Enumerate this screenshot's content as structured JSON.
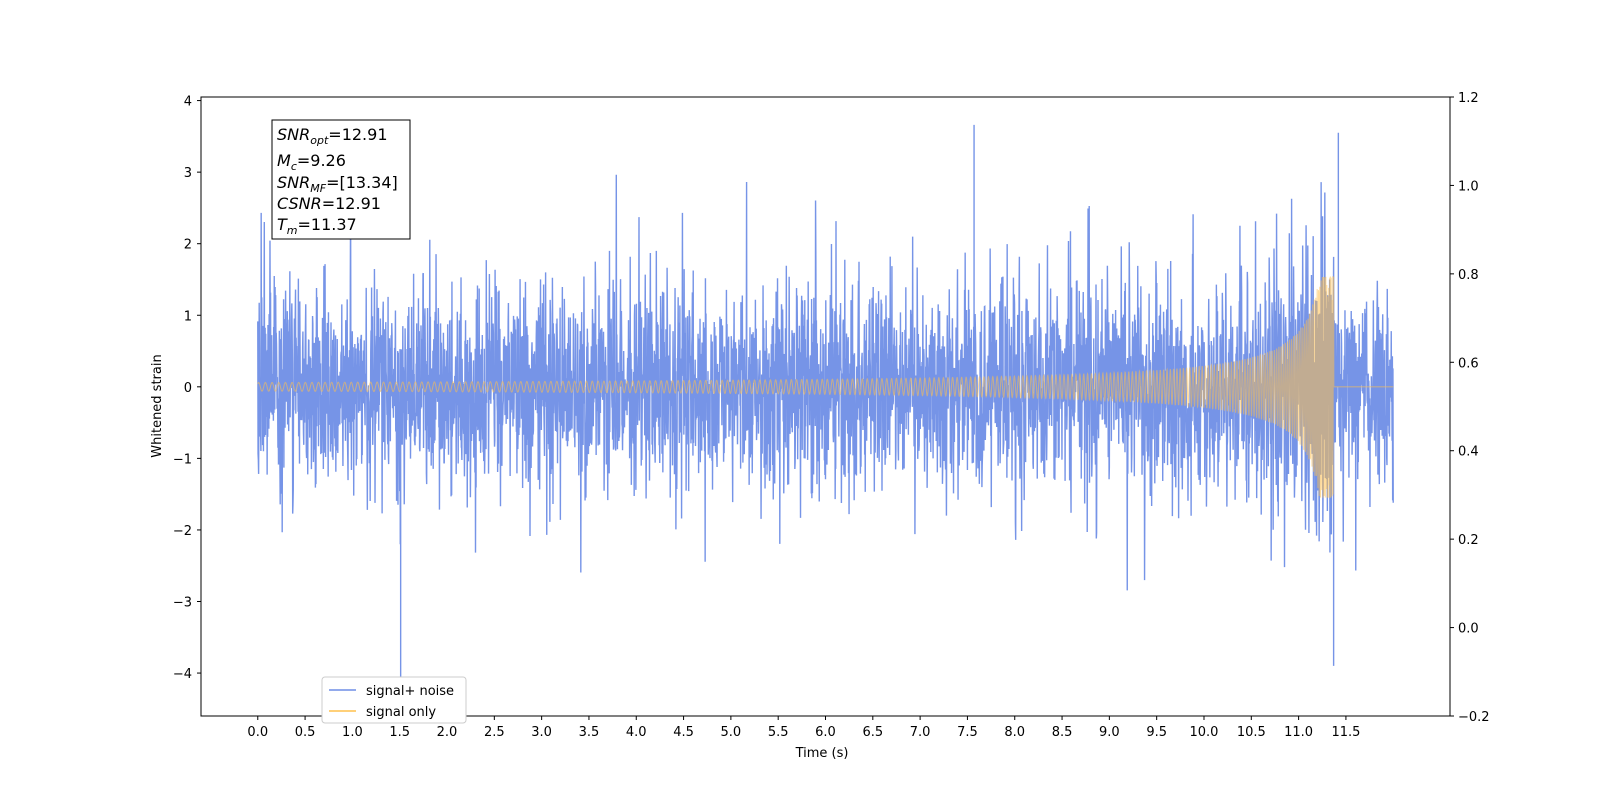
{
  "chart_data": {
    "type": "line",
    "title": "",
    "xlabel": "Time (s)",
    "ylabel": "Whitened strain",
    "xlim": [
      -0.6,
      12.6
    ],
    "ylim": [
      -4.6,
      4.05
    ],
    "ylim_right": [
      -0.2,
      1.2
    ],
    "xticks": [
      "0.0",
      "0.5",
      "1.0",
      "1.5",
      "2.0",
      "2.5",
      "3.0",
      "3.5",
      "4.0",
      "4.5",
      "5.0",
      "5.5",
      "6.0",
      "6.5",
      "7.0",
      "7.5",
      "8.0",
      "8.5",
      "9.0",
      "9.5",
      "10.0",
      "10.5",
      "11.0",
      "11.5"
    ],
    "yticks": [
      "−4",
      "−3",
      "−2",
      "−1",
      "0",
      "1",
      "2",
      "3",
      "4"
    ],
    "yticks_right": [
      "−0.2",
      "0.0",
      "0.2",
      "0.4",
      "0.6",
      "0.8",
      "1.0",
      "1.2"
    ],
    "grid": false,
    "legend_position": "lower-left",
    "series": [
      {
        "name": "signal+ noise",
        "color": "#6f8ee6",
        "description_kind": "whitened noise with injected chirp",
        "x_range": [
          0.0,
          12.0
        ],
        "noise_std": 0.7,
        "notable_peaks": [
          {
            "x": 1.51,
            "y": -4.15
          },
          {
            "x": 7.57,
            "y": 3.66
          },
          {
            "x": 11.37,
            "y": -3.9
          },
          {
            "x": 11.42,
            "y": 3.55
          }
        ]
      },
      {
        "name": "signal only",
        "color": "#ffc04d",
        "description_kind": "chirp template",
        "x_range": [
          0.0,
          12.0
        ],
        "merger_time": 11.37,
        "peak_amplitude": 1.55,
        "start_amplitude": 0.06
      }
    ],
    "annotations": [
      {
        "label": "SNR",
        "sub": "opt",
        "value": "=12.91"
      },
      {
        "label": "M",
        "sub": "c",
        "value": "=9.26"
      },
      {
        "label": "SNR",
        "sub": "MF",
        "value": "=[13.34]"
      },
      {
        "label": "CSNR",
        "sub": "",
        "value": "=12.91"
      },
      {
        "label": "T",
        "sub": "m",
        "value": "=11.37"
      }
    ]
  }
}
